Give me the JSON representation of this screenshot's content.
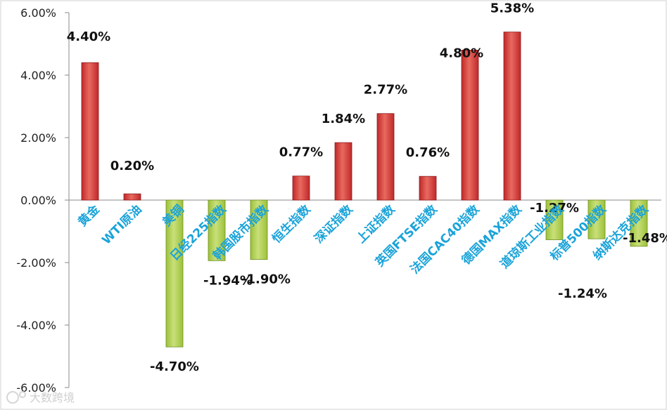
{
  "chart_data": {
    "type": "bar",
    "categories": [
      "黄金",
      "WTI原油",
      "美铜",
      "日经225指数",
      "韩国股市指数",
      "恒生指数",
      "深证指数",
      "上证指数",
      "英国FTSE指数",
      "法国CAC40指数",
      "德国MAX指数",
      "道琼斯工业指数",
      "标普500指数",
      "纳斯达克指数"
    ],
    "values": [
      4.4,
      0.2,
      -4.7,
      -1.94,
      -1.9,
      0.77,
      1.84,
      2.77,
      0.76,
      4.8,
      5.38,
      -1.27,
      -1.24,
      -1.48
    ],
    "data_labels": [
      "4.40%",
      "0.20%",
      "-4.70%",
      "-1.94%",
      "-1.90%",
      "0.77%",
      "1.84%",
      "2.77%",
      "0.76%",
      "4.80%",
      "5.38%",
      "-1.27%",
      "-1.24%",
      "-1.48%"
    ],
    "ylim": [
      -6,
      6
    ],
    "yticks": [
      6,
      4,
      2,
      0,
      -2,
      -4,
      -6
    ],
    "ytick_labels": [
      "6.00%",
      "4.00%",
      "2.00%",
      "0.00%",
      "-2.00%",
      "-4.00%",
      "-6.00%"
    ],
    "title": "",
    "xlabel": "",
    "ylabel": "",
    "grid": false,
    "colors": {
      "positive": "#c0282a",
      "positive_light": "#e86a5f",
      "negative": "#9cc13a",
      "negative_light": "#c9e07a",
      "category_text": "#1aa3d9",
      "axis": "#8a8a8a"
    }
  },
  "watermark": {
    "text": "大数跨境"
  }
}
